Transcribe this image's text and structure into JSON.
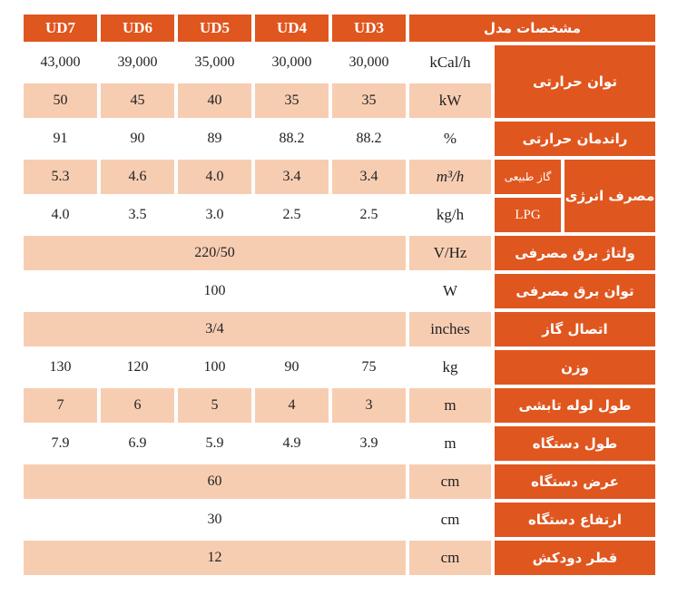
{
  "header": {
    "models": [
      "UD7",
      "UD6",
      "UD5",
      "UD4",
      "UD3"
    ],
    "title": "مشخصات مدل"
  },
  "rows": {
    "heat_kcal": {
      "values": [
        "43,000",
        "39,000",
        "35,000",
        "30,000",
        "30,000"
      ],
      "unit": "kCal/h"
    },
    "heat_kw": {
      "values": [
        "50",
        "45",
        "40",
        "35",
        "35"
      ],
      "unit": "kW"
    },
    "heat_label": "توان حرارتی",
    "efficiency": {
      "values": [
        "91",
        "90",
        "89",
        "88.2",
        "88.2"
      ],
      "unit": "%",
      "label": "راندمان حرارتی"
    },
    "energy_gas": {
      "values": [
        "5.3",
        "4.6",
        "4.0",
        "3.4",
        "3.4"
      ],
      "unit": "m³/h",
      "sublabel": "گاز طبیعی"
    },
    "energy_lpg": {
      "values": [
        "4.0",
        "3.5",
        "3.0",
        "2.5",
        "2.5"
      ],
      "unit": "kg/h",
      "sublabel": "LPG"
    },
    "energy_label": "مصرف انرژی",
    "voltage": {
      "value": "220/50",
      "unit": "V/Hz",
      "label": "ولتاژ برق مصرفی"
    },
    "power": {
      "value": "100",
      "unit": "W",
      "label": "توان برق مصرفی"
    },
    "gas_conn": {
      "value": "3/4",
      "unit": "inches",
      "label": "اتصال گاز"
    },
    "weight": {
      "values": [
        "130",
        "120",
        "100",
        "90",
        "75"
      ],
      "unit": "kg",
      "label": "وزن"
    },
    "pipe_len": {
      "values": [
        "7",
        "6",
        "5",
        "4",
        "3"
      ],
      "unit": "m",
      "label": "طول لوله تابشی"
    },
    "device_len": {
      "values": [
        "7.9",
        "6.9",
        "5.9",
        "4.9",
        "3.9"
      ],
      "unit": "m",
      "label": "طول دستگاه"
    },
    "device_width": {
      "value": "60",
      "unit": "cm",
      "label": "عرض دستگاه"
    },
    "device_height": {
      "value": "30",
      "unit": "cm",
      "label": "ارتفاع دستگاه"
    },
    "chimney": {
      "value": "12",
      "unit": "cm",
      "label": "قطر دودکش"
    }
  },
  "colors": {
    "accent": "#e0561f",
    "peach": "#f7cdb2"
  }
}
